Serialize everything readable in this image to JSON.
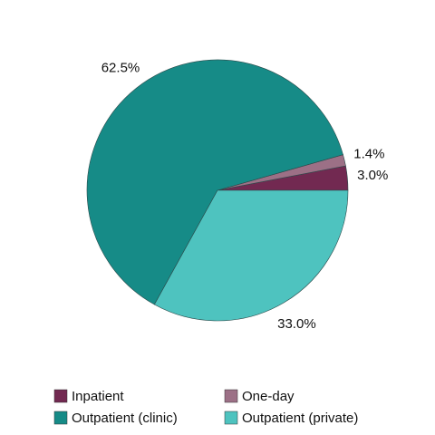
{
  "chart_data": {
    "type": "pie",
    "categories": [
      "Inpatient",
      "One-day",
      "Outpatient (clinic)",
      "Outpatient (private)"
    ],
    "values": [
      3.0,
      1.4,
      62.5,
      33.0
    ],
    "value_labels": [
      "3.0%",
      "1.4%",
      "62.5%",
      "33.0%"
    ],
    "colors": [
      "#722951",
      "#9c7086",
      "#168b87",
      "#4ec3bf"
    ],
    "legend": "bottom"
  }
}
